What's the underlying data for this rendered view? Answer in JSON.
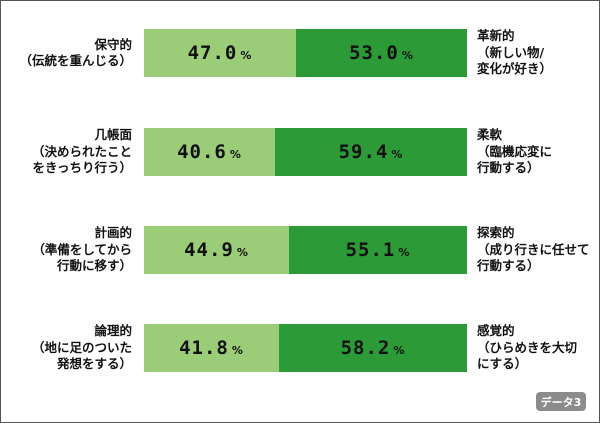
{
  "chart_data": {
    "type": "bar",
    "stacked": true,
    "orientation": "horizontal",
    "scale_max": 100,
    "unit": "%",
    "colors": {
      "left": "#9bcc78",
      "right": "#2c9a37"
    },
    "rows": [
      {
        "left_label": "保守的\n（伝統を重んじる）",
        "right_label": "革新的\n（新しい物/\n変化が好き）",
        "left_value": 47.0,
        "right_value": 53.0,
        "left_text": "47.0",
        "right_text": "53.0"
      },
      {
        "left_label": "几帳面\n（決められたこと\nをきっちり行う）",
        "right_label": "柔軟\n（臨機応変に\n行動する）",
        "left_value": 40.6,
        "right_value": 59.4,
        "left_text": "40.6",
        "right_text": "59.4"
      },
      {
        "left_label": "計画的\n（準備をしてから\n行動に移す）",
        "right_label": "探索的\n（成り行きに任せて\n行動する）",
        "left_value": 44.9,
        "right_value": 55.1,
        "left_text": "44.9",
        "right_text": "55.1"
      },
      {
        "left_label": "論理的\n（地に足のついた\n発想をする）",
        "right_label": "感覚的\n（ひらめきを大切\nにする）",
        "left_value": 41.8,
        "right_value": 58.2,
        "left_text": "41.8",
        "right_text": "58.2"
      }
    ]
  },
  "badge": {
    "label": "データ3"
  }
}
